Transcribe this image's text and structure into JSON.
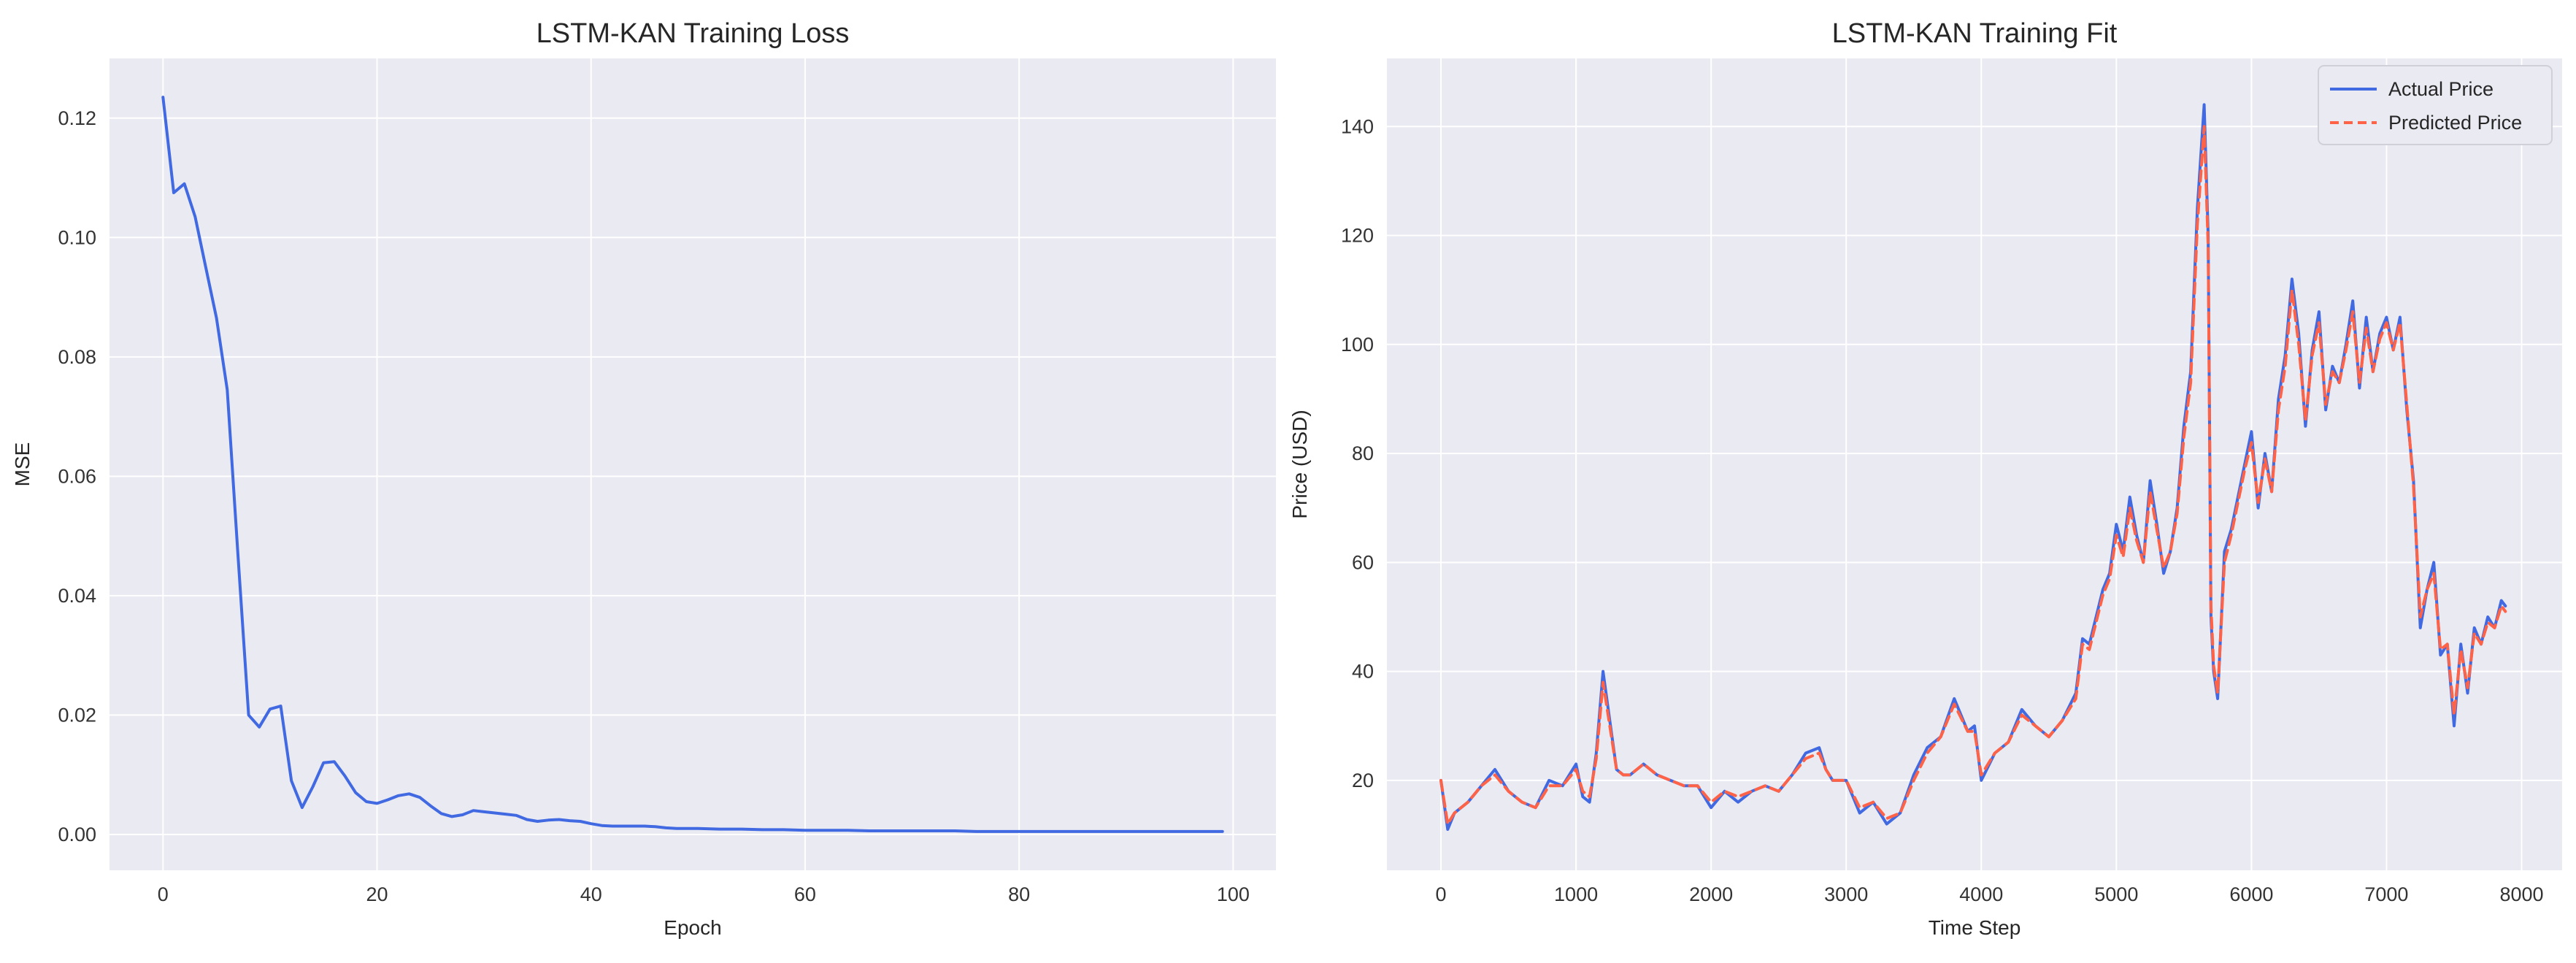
{
  "colors": {
    "axes_background": "#eaeaf2",
    "grid": "#ffffff",
    "actual": "#4169e1",
    "predicted": "#ff6347"
  },
  "chart_data": [
    {
      "type": "line",
      "title": "LSTM-KAN Training Loss",
      "xlabel": "Epoch",
      "ylabel": "MSE",
      "xlim": [
        -5,
        104
      ],
      "ylim": [
        -0.006,
        0.13
      ],
      "xticks": [
        0,
        20,
        40,
        60,
        80,
        100
      ],
      "xtick_labels": [
        "0",
        "20",
        "40",
        "60",
        "80",
        "100"
      ],
      "yticks": [
        0.0,
        0.02,
        0.04,
        0.06,
        0.08,
        0.1,
        0.12
      ],
      "ytick_labels": [
        "0.00",
        "0.02",
        "0.04",
        "0.06",
        "0.08",
        "0.10",
        "0.12"
      ],
      "grid": true,
      "series": [
        {
          "color": "#4169e1",
          "x": [
            0,
            1,
            2,
            3,
            4,
            5,
            6,
            7,
            8,
            9,
            10,
            11,
            12,
            13,
            14,
            15,
            16,
            17,
            18,
            19,
            20,
            21,
            22,
            23,
            24,
            25,
            26,
            27,
            28,
            29,
            30,
            31,
            32,
            33,
            34,
            35,
            36,
            37,
            38,
            39,
            40,
            41,
            42,
            43,
            44,
            45,
            46,
            47,
            48,
            49,
            50,
            52,
            54,
            56,
            58,
            60,
            62,
            64,
            66,
            68,
            70,
            72,
            74,
            76,
            78,
            80,
            82,
            84,
            86,
            88,
            90,
            92,
            94,
            96,
            98,
            99
          ],
          "y": [
            0.1235,
            0.1075,
            0.109,
            0.1035,
            0.095,
            0.0865,
            0.0745,
            0.047,
            0.02,
            0.018,
            0.021,
            0.0215,
            0.009,
            0.0045,
            0.008,
            0.012,
            0.0122,
            0.0098,
            0.007,
            0.0055,
            0.0052,
            0.0058,
            0.0065,
            0.0068,
            0.0062,
            0.0048,
            0.0035,
            0.003,
            0.0033,
            0.004,
            0.0038,
            0.0036,
            0.0034,
            0.0032,
            0.0025,
            0.0022,
            0.0024,
            0.0025,
            0.0023,
            0.0022,
            0.0018,
            0.0015,
            0.0014,
            0.0014,
            0.0014,
            0.0014,
            0.0013,
            0.0011,
            0.001,
            0.001,
            0.001,
            0.0009,
            0.0009,
            0.0008,
            0.0008,
            0.0007,
            0.0007,
            0.0007,
            0.0006,
            0.0006,
            0.0006,
            0.0006,
            0.0006,
            0.0005,
            0.0005,
            0.0005,
            0.0005,
            0.0005,
            0.0005,
            0.0005,
            0.0005,
            0.0005,
            0.0005,
            0.0005,
            0.0005,
            0.0005
          ]
        }
      ]
    },
    {
      "type": "line",
      "title": "LSTM-KAN Training Fit",
      "xlabel": "Time Step",
      "ylabel": "Price (USD)",
      "xlim": [
        -400,
        8300
      ],
      "ylim": [
        3.5,
        152.5
      ],
      "xticks": [
        0,
        1000,
        2000,
        3000,
        4000,
        5000,
        6000,
        7000,
        8000
      ],
      "xtick_labels": [
        "0",
        "1000",
        "2000",
        "3000",
        "4000",
        "5000",
        "6000",
        "7000",
        "8000"
      ],
      "yticks": [
        20,
        40,
        60,
        80,
        100,
        120,
        140
      ],
      "ytick_labels": [
        "20",
        "40",
        "60",
        "80",
        "100",
        "120",
        "140"
      ],
      "grid": true,
      "legend_position": "top-right",
      "series": [
        {
          "name": "Actual Price",
          "color": "#4169e1",
          "dash": "solid",
          "x": [
            0,
            50,
            100,
            200,
            300,
            400,
            500,
            600,
            700,
            800,
            900,
            1000,
            1050,
            1100,
            1150,
            1200,
            1250,
            1300,
            1350,
            1400,
            1500,
            1600,
            1700,
            1800,
            1900,
            2000,
            2100,
            2200,
            2300,
            2400,
            2500,
            2600,
            2700,
            2800,
            2850,
            2900,
            3000,
            3100,
            3200,
            3300,
            3400,
            3500,
            3600,
            3700,
            3800,
            3900,
            3950,
            4000,
            4100,
            4200,
            4300,
            4400,
            4500,
            4600,
            4700,
            4750,
            4800,
            4900,
            4950,
            5000,
            5050,
            5100,
            5150,
            5200,
            5250,
            5300,
            5350,
            5400,
            5450,
            5500,
            5550,
            5600,
            5650,
            5680,
            5700,
            5720,
            5750,
            5800,
            5850,
            5900,
            5950,
            6000,
            6050,
            6100,
            6150,
            6200,
            6250,
            6300,
            6350,
            6400,
            6450,
            6500,
            6550,
            6600,
            6650,
            6700,
            6750,
            6800,
            6850,
            6900,
            6950,
            7000,
            7050,
            7100,
            7150,
            7200,
            7250,
            7300,
            7350,
            7400,
            7450,
            7500,
            7550,
            7600,
            7650,
            7700,
            7750,
            7800,
            7850,
            7880
          ],
          "y": [
            20,
            11,
            14,
            16,
            19,
            22,
            18,
            16,
            15,
            20,
            19,
            23,
            17,
            16,
            25,
            40,
            31,
            22,
            21,
            21,
            23,
            21,
            20,
            19,
            19,
            15,
            18,
            16,
            18,
            19,
            18,
            21,
            25,
            26,
            22,
            20,
            20,
            14,
            16,
            12,
            14,
            21,
            26,
            28,
            35,
            29,
            30,
            20,
            25,
            27,
            33,
            30,
            28,
            31,
            36,
            46,
            45,
            55,
            58,
            67,
            62,
            72,
            65,
            60,
            75,
            67,
            58,
            62,
            70,
            85,
            95,
            125,
            144,
            120,
            50,
            40,
            35,
            62,
            66,
            72,
            78,
            84,
            70,
            80,
            73,
            90,
            98,
            112,
            102,
            85,
            99,
            106,
            88,
            96,
            93,
            100,
            108,
            92,
            105,
            95,
            102,
            105,
            99,
            105,
            88,
            75,
            48,
            55,
            60,
            43,
            45,
            30,
            45,
            36,
            48,
            45,
            50,
            48,
            53,
            52
          ]
        },
        {
          "name": "Predicted Price",
          "color": "#ff6347",
          "dash": "dashed",
          "x": [
            0,
            50,
            100,
            200,
            300,
            400,
            500,
            600,
            700,
            800,
            900,
            1000,
            1050,
            1100,
            1150,
            1200,
            1250,
            1300,
            1350,
            1400,
            1500,
            1600,
            1700,
            1800,
            1900,
            2000,
            2100,
            2200,
            2300,
            2400,
            2500,
            2600,
            2700,
            2800,
            2850,
            2900,
            3000,
            3100,
            3200,
            3300,
            3400,
            3500,
            3600,
            3700,
            3800,
            3900,
            3950,
            4000,
            4100,
            4200,
            4300,
            4400,
            4500,
            4600,
            4700,
            4750,
            4800,
            4900,
            4950,
            5000,
            5050,
            5100,
            5150,
            5200,
            5250,
            5300,
            5350,
            5400,
            5450,
            5500,
            5550,
            5600,
            5650,
            5680,
            5700,
            5720,
            5750,
            5800,
            5850,
            5900,
            5950,
            6000,
            6050,
            6100,
            6150,
            6200,
            6250,
            6300,
            6350,
            6400,
            6450,
            6500,
            6550,
            6600,
            6650,
            6700,
            6750,
            6800,
            6850,
            6900,
            6950,
            7000,
            7050,
            7100,
            7150,
            7200,
            7250,
            7300,
            7350,
            7400,
            7450,
            7500,
            7550,
            7600,
            7650,
            7700,
            7750,
            7800,
            7850,
            7880
          ],
          "y": [
            20,
            12,
            14,
            16,
            19,
            21,
            18,
            16,
            15,
            19,
            19,
            22,
            18,
            17,
            24,
            38,
            30,
            22,
            21,
            21,
            23,
            21,
            20,
            19,
            19,
            16,
            18,
            17,
            18,
            19,
            18,
            21,
            24,
            25,
            22,
            20,
            20,
            15,
            16,
            13,
            14,
            20,
            25,
            28,
            34,
            29,
            29,
            21,
            25,
            27,
            32,
            30,
            28,
            31,
            35,
            45,
            44,
            54,
            57,
            65,
            61,
            70,
            64,
            60,
            73,
            66,
            59,
            62,
            69,
            83,
            93,
            122,
            140,
            118,
            52,
            41,
            36,
            60,
            65,
            71,
            77,
            82,
            71,
            79,
            73,
            88,
            96,
            110,
            100,
            86,
            98,
            104,
            89,
            95,
            93,
            99,
            106,
            93,
            103,
            95,
            101,
            104,
            99,
            104,
            89,
            74,
            50,
            55,
            58,
            44,
            45,
            32,
            44,
            37,
            47,
            45,
            49,
            48,
            52,
            51
          ]
        }
      ]
    }
  ]
}
